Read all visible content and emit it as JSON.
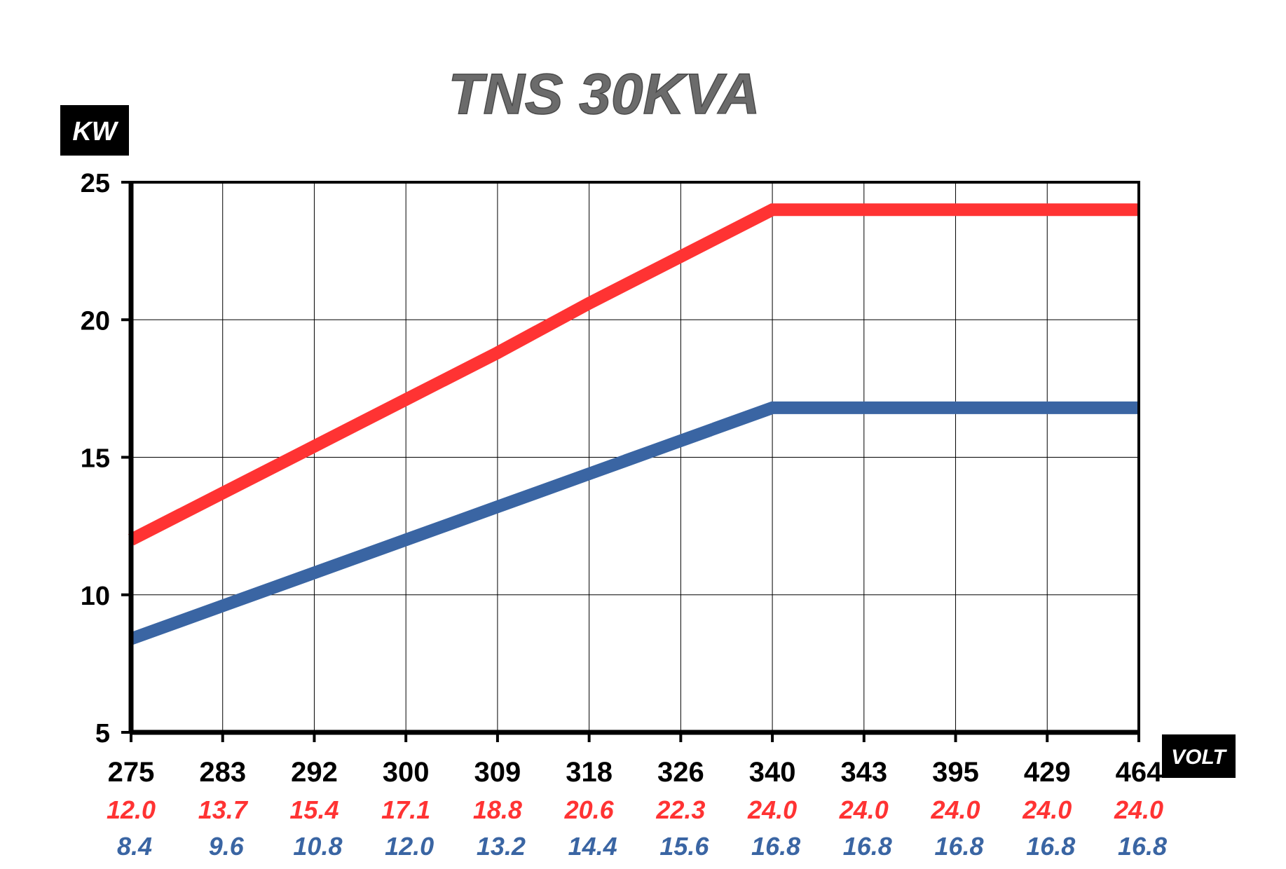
{
  "chart_data": {
    "type": "line",
    "title": "TNS 30KVA",
    "ylabel": "KW",
    "xlabel": "VOLT",
    "categories": [
      "275",
      "283",
      "292",
      "300",
      "309",
      "318",
      "326",
      "340",
      "343",
      "395",
      "429",
      "464"
    ],
    "ylim": [
      5,
      25
    ],
    "yticks": [
      "25",
      "20",
      "15",
      "10",
      "5"
    ],
    "grid": true,
    "series": [
      {
        "color": "#ff3333",
        "values": [
          12.0,
          13.7,
          15.4,
          17.1,
          18.8,
          20.6,
          22.3,
          24.0,
          24.0,
          24.0,
          24.0,
          24.0
        ],
        "labels": [
          "12.0",
          "13.7",
          "15.4",
          "17.1",
          "18.8",
          "20.6",
          "22.3",
          "24.0",
          "24.0",
          "24.0",
          "24.0",
          "24.0"
        ]
      },
      {
        "color": "#3a65a3",
        "values": [
          8.4,
          9.6,
          10.8,
          12.0,
          13.2,
          14.4,
          15.6,
          16.8,
          16.8,
          16.8,
          16.8,
          16.8
        ],
        "labels": [
          "8.4",
          "9.6",
          "10.8",
          "12.0",
          "13.2",
          "14.4",
          "15.6",
          "16.8",
          "16.8",
          "16.8",
          "16.8",
          "16.8"
        ]
      }
    ]
  }
}
